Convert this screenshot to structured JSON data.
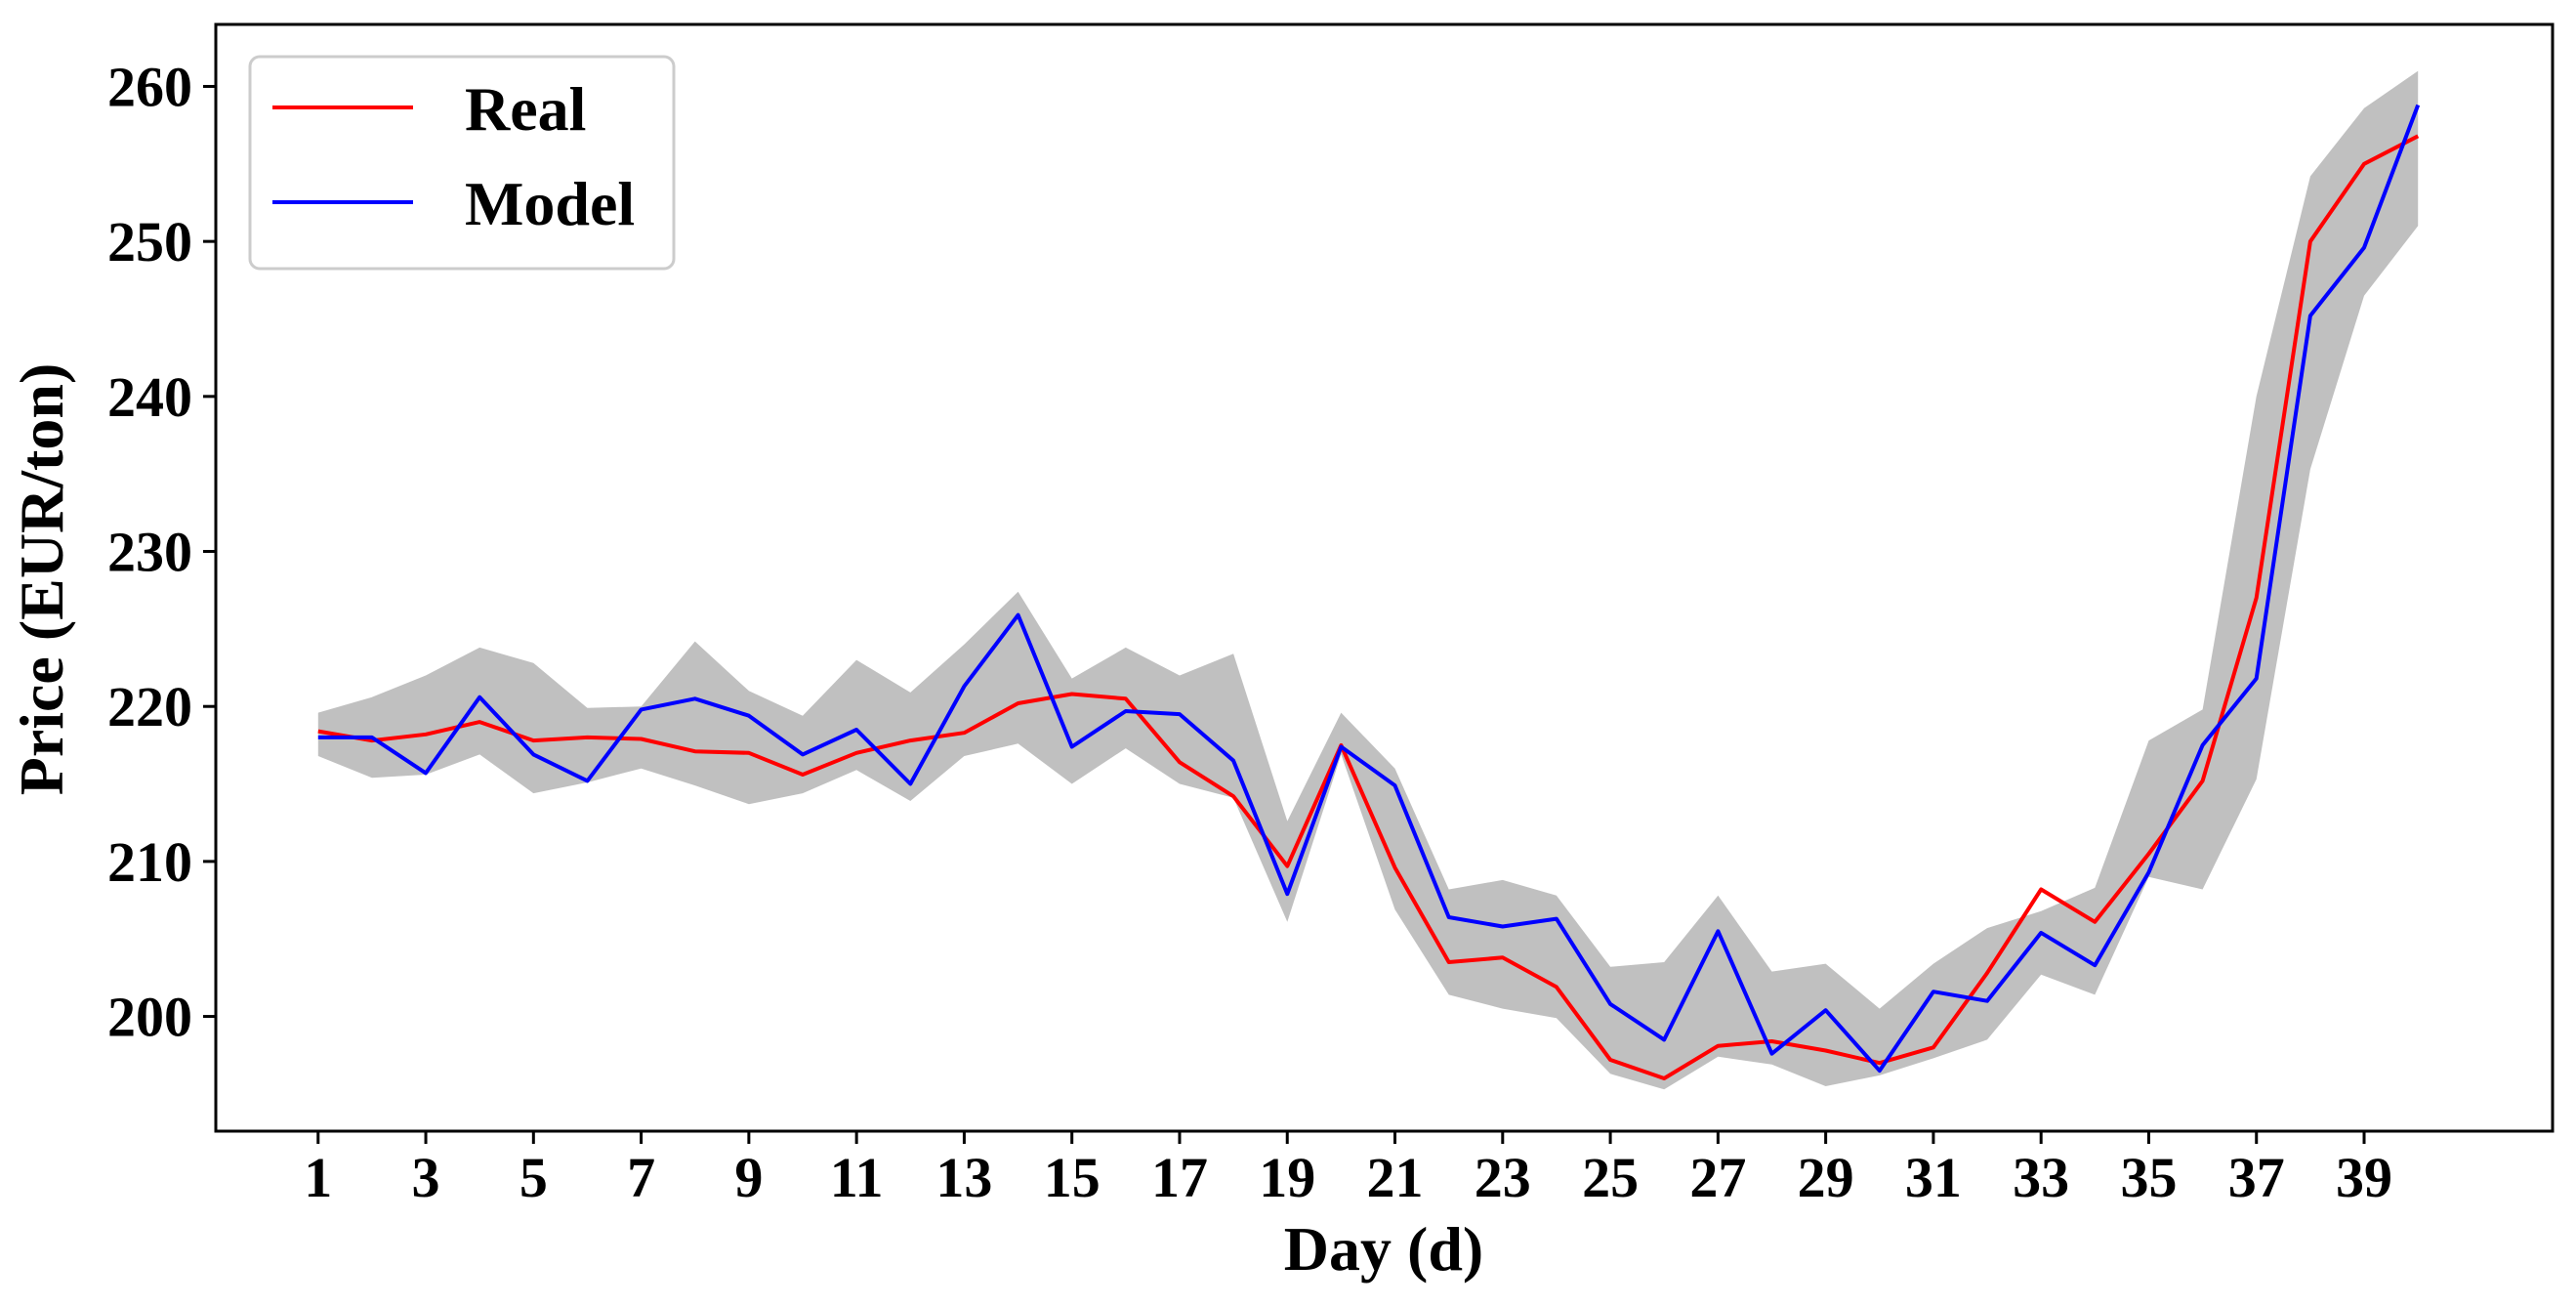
{
  "chart_data": {
    "type": "line",
    "title": "",
    "xlabel": "Day (d)",
    "ylabel": "Price (EUR/ton)",
    "x": [
      1,
      2,
      3,
      4,
      5,
      6,
      7,
      8,
      9,
      10,
      11,
      12,
      13,
      14,
      15,
      16,
      17,
      18,
      19,
      20,
      21,
      22,
      23,
      24,
      25,
      26,
      27,
      28,
      29,
      30,
      31,
      32,
      33,
      34,
      35,
      36,
      37,
      38,
      39,
      40
    ],
    "xticks": [
      1,
      3,
      5,
      7,
      9,
      11,
      13,
      15,
      17,
      19,
      21,
      23,
      25,
      27,
      29,
      31,
      33,
      35,
      37,
      39
    ],
    "xlim": [
      -0.9,
      42.5
    ],
    "yticks": [
      200,
      210,
      220,
      230,
      240,
      250,
      260
    ],
    "ylim": [
      192.6,
      264
    ],
    "grid": false,
    "legend_position": "top-left",
    "band": {
      "name": "uncertainty",
      "color": "#c0c0c0",
      "lower": [
        216.8,
        215.4,
        215.6,
        216.9,
        214.4,
        215.1,
        216.0,
        214.9,
        213.7,
        214.4,
        215.9,
        213.9,
        216.8,
        217.6,
        215.0,
        217.3,
        215.0,
        214.1,
        206.1,
        216.9,
        206.9,
        201.4,
        200.5,
        199.9,
        196.3,
        195.3,
        197.4,
        196.9,
        195.5,
        196.2,
        197.3,
        198.5,
        202.7,
        201.4,
        209.0,
        208.2,
        215.3,
        235.3,
        246.5,
        251.0
      ],
      "upper": [
        219.6,
        220.6,
        222.0,
        223.8,
        222.8,
        219.9,
        220.0,
        224.2,
        221.0,
        219.4,
        223.0,
        220.9,
        224.0,
        227.4,
        221.8,
        223.8,
        222.0,
        223.4,
        212.6,
        219.6,
        216.0,
        208.2,
        208.8,
        207.8,
        203.2,
        203.5,
        207.8,
        202.9,
        203.4,
        200.5,
        203.4,
        205.7,
        206.8,
        208.3,
        217.8,
        219.8,
        240.0,
        254.2,
        258.6,
        261.0
      ]
    },
    "series": [
      {
        "name": "Real",
        "color": "#ff0000",
        "values": [
          218.4,
          217.8,
          218.2,
          219.0,
          217.8,
          218.0,
          217.9,
          217.1,
          217.0,
          215.6,
          217.0,
          217.8,
          218.3,
          220.2,
          220.8,
          220.5,
          216.4,
          214.2,
          209.7,
          217.5,
          209.6,
          203.5,
          203.8,
          201.9,
          197.2,
          196.0,
          198.1,
          198.4,
          197.8,
          197.0,
          198.0,
          202.8,
          208.2,
          206.1,
          210.5,
          215.2,
          227.0,
          250.0,
          255.0,
          256.8
        ]
      },
      {
        "name": "Model",
        "color": "#0000ff",
        "values": [
          218.0,
          218.0,
          215.7,
          220.6,
          216.9,
          215.2,
          219.8,
          220.5,
          219.4,
          216.9,
          218.5,
          215.0,
          221.3,
          225.9,
          217.4,
          219.7,
          219.5,
          216.5,
          207.9,
          217.4,
          214.9,
          206.4,
          205.8,
          206.3,
          200.8,
          198.5,
          205.5,
          197.6,
          200.4,
          196.5,
          201.6,
          201.0,
          205.4,
          203.3,
          209.3,
          217.5,
          221.8,
          245.2,
          249.6,
          258.8
        ]
      }
    ]
  }
}
